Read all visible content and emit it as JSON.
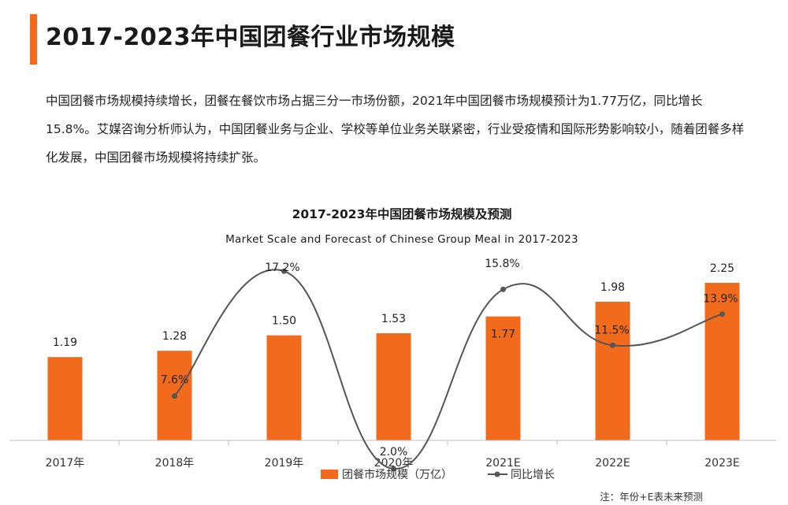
{
  "header": {
    "title": "2017-2023年中国团餐行业市场规模"
  },
  "summary": {
    "text": "中国团餐市场规模持续增长，团餐在餐饮市场占据三分一市场份额，2021年中国团餐市场规模预计为1.77万亿，同比增长15.8%。艾媒咨询分析师认为，中国团餐业务与企业、学校等单位业务关联紧密，行业受疫情和国际形势影响较小，随着团餐多样化发展，中国团餐市场规模将持续扩张。"
  },
  "chart_data": {
    "type": "bar",
    "title": "2017-2023年中国团餐市场规模及预测",
    "subtitle": "Market Scale and Forecast of Chinese Group Meal in 2017-2023",
    "categories": [
      "2017年",
      "2018年",
      "2019年",
      "2020年",
      "2021E",
      "2022E",
      "2023E"
    ],
    "series": [
      {
        "name": "团餐市场规模（万亿）",
        "type": "bar",
        "color": "#f26b1d",
        "values": [
          1.19,
          1.28,
          1.5,
          1.53,
          1.77,
          1.98,
          2.25
        ],
        "labels": [
          "1.19",
          "1.28",
          "1.50",
          "1.53",
          "1.77",
          "1.98",
          "2.25"
        ]
      },
      {
        "name": "同比增长",
        "type": "line",
        "color": "#555555",
        "values": [
          null,
          7.6,
          17.2,
          2.0,
          15.8,
          11.5,
          13.9
        ],
        "labels": [
          "",
          "7.6%",
          "17.2%",
          "2.0%",
          "15.8%",
          "11.5%",
          "13.9%"
        ],
        "unit": "%"
      }
    ],
    "ylim": [
      0,
      2.5
    ],
    "y2lim": [
      0,
      20
    ],
    "grid": false,
    "legend": "bottom"
  },
  "footnote": "注：年份+E表未来预测"
}
